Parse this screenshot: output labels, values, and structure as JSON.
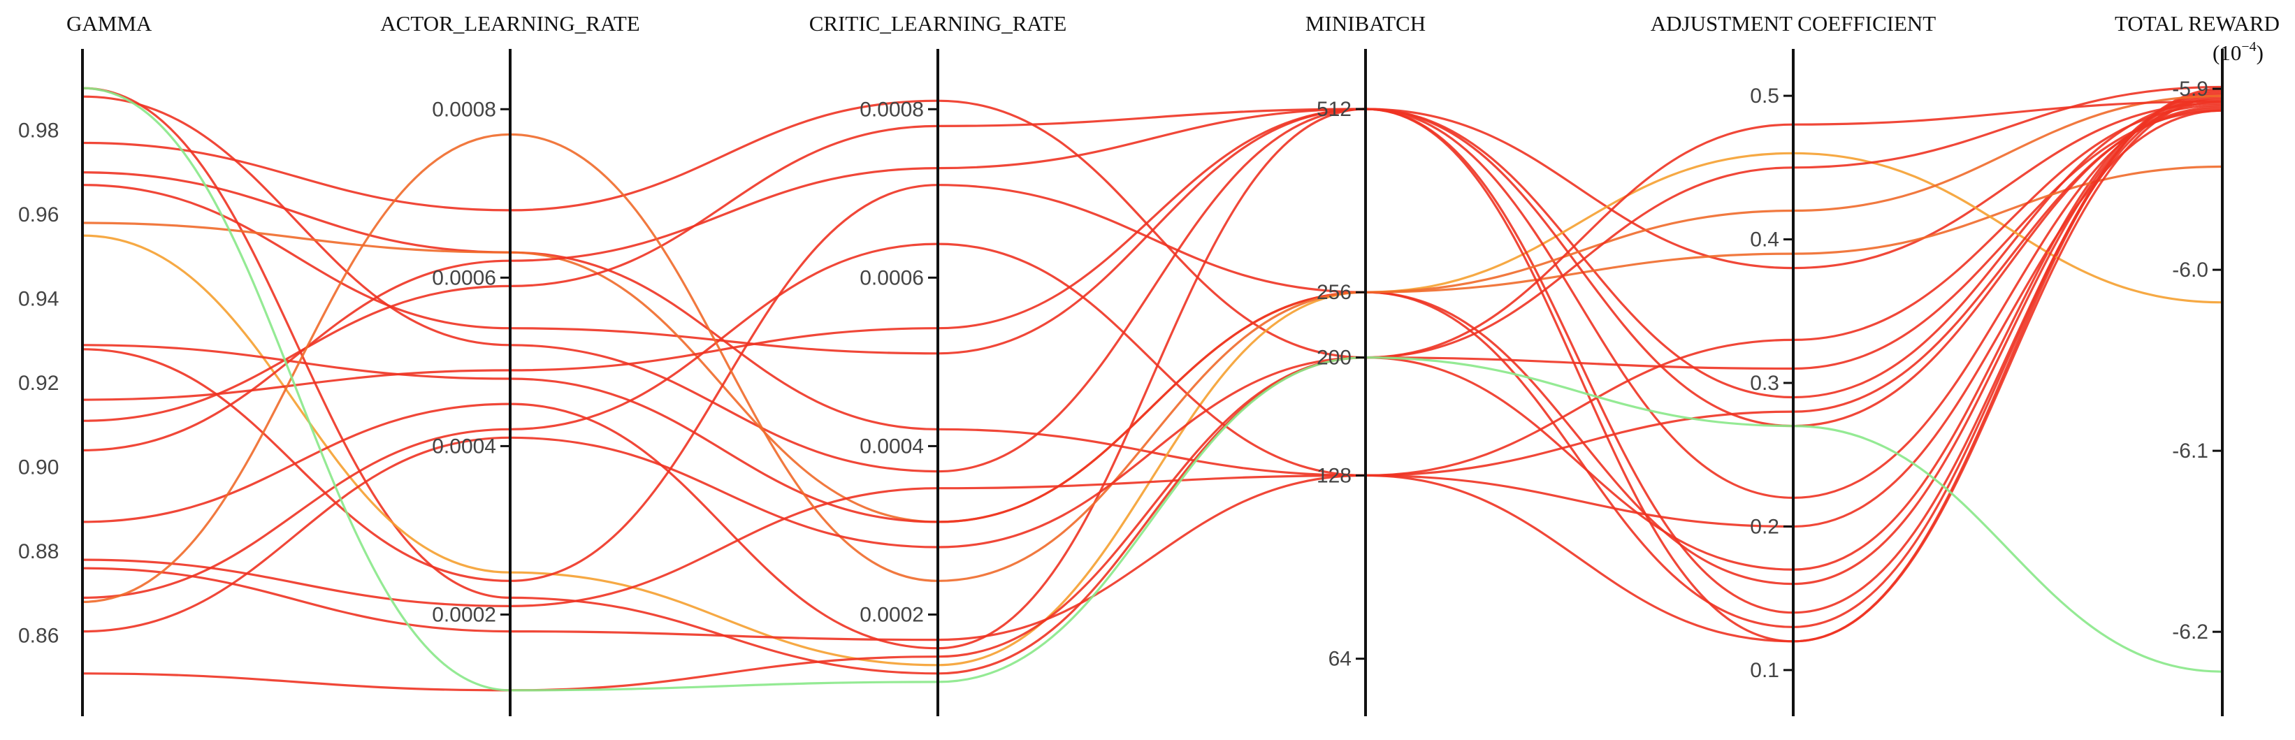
{
  "chart_data": {
    "type": "parallel-coordinates",
    "axes": [
      {
        "key": "gamma",
        "label": "GAMMA",
        "range": [
          0.845,
          0.995
        ],
        "ticks": [
          {
            "v": 0.98,
            "label": "0.98"
          },
          {
            "v": 0.96,
            "label": "0.96"
          },
          {
            "v": 0.94,
            "label": "0.94"
          },
          {
            "v": 0.92,
            "label": "0.92"
          },
          {
            "v": 0.9,
            "label": "0.90"
          },
          {
            "v": 0.88,
            "label": "0.88"
          },
          {
            "v": 0.86,
            "label": "0.86"
          }
        ]
      },
      {
        "key": "actor_lr",
        "label": "ACTOR_LEARNING_RATE",
        "range": [
          0.0001,
          0.00085
        ],
        "ticks": [
          {
            "v": 0.0008,
            "label": "0.0008"
          },
          {
            "v": 0.0006,
            "label": "0.0006"
          },
          {
            "v": 0.0004,
            "label": "0.0004"
          },
          {
            "v": 0.0002,
            "label": "0.0002"
          }
        ]
      },
      {
        "key": "critic_lr",
        "label": "CRITIC_LEARNING_RATE",
        "range": [
          0.0001,
          0.00085
        ],
        "ticks": [
          {
            "v": 0.0008,
            "label": "0.0008"
          },
          {
            "v": 0.0006,
            "label": "0.0006"
          },
          {
            "v": 0.0004,
            "label": "0.0004"
          },
          {
            "v": 0.0002,
            "label": "0.0002"
          }
        ]
      },
      {
        "key": "minibatch",
        "label": "MINIBATCH",
        "scale": "log2",
        "range": [
          55,
          600
        ],
        "ticks": [
          {
            "v": 512,
            "label": "512"
          },
          {
            "v": 256,
            "label": "256"
          },
          {
            "v": 200,
            "label": "200"
          },
          {
            "v": 128,
            "label": "128"
          },
          {
            "v": 64,
            "label": "64"
          }
        ]
      },
      {
        "key": "adj_coef",
        "label": "ADJUSTMENT COEFFICIENT",
        "range": [
          0.08,
          0.52
        ],
        "ticks": [
          {
            "v": 0.5,
            "label": "0.5"
          },
          {
            "v": 0.4,
            "label": "0.4"
          },
          {
            "v": 0.3,
            "label": "0.3"
          },
          {
            "v": 0.2,
            "label": "0.2"
          },
          {
            "v": 0.1,
            "label": "0.1"
          }
        ]
      },
      {
        "key": "total_reward",
        "label": "TOTAL REWARD",
        "unit_exponent": "(10",
        "unit_exponent_power": "−4",
        "unit_exponent_close": ")",
        "range": [
          -6.237,
          -5.888
        ],
        "ticks": [
          {
            "v": -5.9,
            "label": "-5.9"
          },
          {
            "v": -6.0,
            "label": "-6.0"
          },
          {
            "v": -6.1,
            "label": "-6.1"
          },
          {
            "v": -6.2,
            "label": "-6.2"
          }
        ]
      }
    ],
    "series": [
      {
        "color": "#ee3322",
        "values": [
          0.99,
          0.00022,
          0.00013,
          200,
          0.31,
          -5.912
        ]
      },
      {
        "color": "#ee3322",
        "values": [
          0.988,
          0.00052,
          0.00037,
          512,
          0.38,
          -5.908
        ]
      },
      {
        "color": "#ee3322",
        "values": [
          0.977,
          0.00068,
          0.00081,
          200,
          0.17,
          -5.902
        ]
      },
      {
        "color": "#ee3322",
        "values": [
          0.97,
          0.00063,
          0.00042,
          128,
          0.12,
          -5.9
        ]
      },
      {
        "color": "#ee3322",
        "values": [
          0.967,
          0.00054,
          0.00051,
          512,
          0.29,
          -5.906
        ]
      },
      {
        "color": "#f06a2a",
        "values": [
          0.958,
          0.00063,
          0.00031,
          256,
          0.39,
          -5.943
        ]
      },
      {
        "color": "#f5a030",
        "values": [
          0.955,
          0.00025,
          0.00014,
          256,
          0.46,
          -6.018
        ]
      },
      {
        "color": "#ee3322",
        "values": [
          0.929,
          0.00048,
          0.00031,
          256,
          0.16,
          -5.903
        ]
      },
      {
        "color": "#ee3322",
        "values": [
          0.928,
          0.00024,
          0.00071,
          256,
          0.13,
          -5.901
        ]
      },
      {
        "color": "#ee3322",
        "values": [
          0.916,
          0.00049,
          0.00054,
          512,
          0.22,
          -5.907
        ]
      },
      {
        "color": "#ee3322",
        "values": [
          0.911,
          0.00059,
          0.00078,
          512,
          0.14,
          -5.904
        ]
      },
      {
        "color": "#ee3322",
        "values": [
          0.904,
          0.00062,
          0.00073,
          512,
          0.12,
          -5.905
        ]
      },
      {
        "color": "#ee3322",
        "values": [
          0.887,
          0.00045,
          0.00016,
          512,
          0.27,
          -5.91
        ]
      },
      {
        "color": "#ee3322",
        "values": [
          0.878,
          0.00021,
          0.00035,
          128,
          0.33,
          -5.909
        ]
      },
      {
        "color": "#ee3322",
        "values": [
          0.876,
          0.00018,
          0.00017,
          128,
          0.28,
          -5.911
        ]
      },
      {
        "color": "#ee3322",
        "values": [
          0.869,
          0.00042,
          0.00064,
          128,
          0.2,
          -5.912
        ]
      },
      {
        "color": "#f06a2a",
        "values": [
          0.868,
          0.00077,
          0.00024,
          256,
          0.42,
          -5.904
        ]
      },
      {
        "color": "#ee3322",
        "values": [
          0.861,
          0.00041,
          0.00028,
          200,
          0.45,
          -5.899
        ]
      },
      {
        "color": "#ee3322",
        "values": [
          0.851,
          0.00011,
          0.00015,
          200,
          0.48,
          -5.907
        ]
      },
      {
        "color": "#88e888",
        "values": [
          0.99,
          0.00011,
          0.00012,
          200,
          0.27,
          -6.222
        ]
      }
    ]
  }
}
